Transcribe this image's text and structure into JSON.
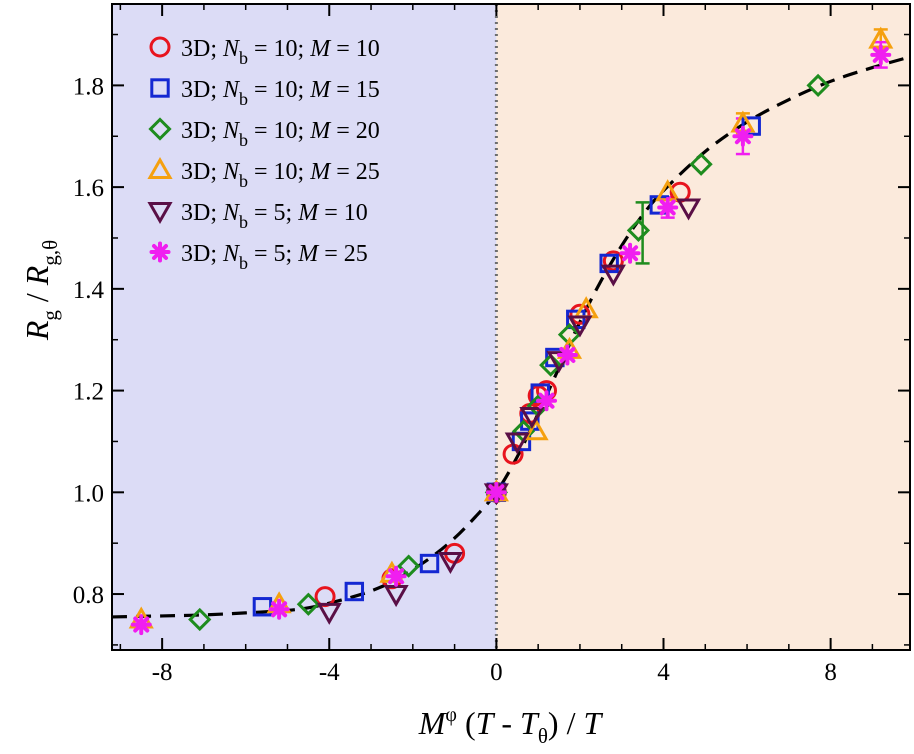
{
  "chart_data": {
    "type": "scatter",
    "xlabel": "M^φ (T - T_θ) / T",
    "xlabel_parts": {
      "m": "M",
      "phi": "φ",
      "open": " (",
      "t1": "T",
      "minus": " - ",
      "t2": "T",
      "theta": "θ",
      "close": ") / ",
      "t3": "T"
    },
    "ylabel": "R_g / R_g,θ",
    "ylabel_parts": {
      "r1": "R",
      "sub1": "g",
      "slash": " / ",
      "r2": "R",
      "sub2": "g,θ"
    },
    "xlim": [
      -9.2,
      9.9
    ],
    "ylim": [
      0.69,
      1.96
    ],
    "xticks": [
      -8,
      -4,
      0,
      4,
      8
    ],
    "xtick_labels": [
      "-8",
      "-4",
      "0",
      "4",
      "8"
    ],
    "yticks": [
      0.8,
      1.0,
      1.2,
      1.4,
      1.6,
      1.8
    ],
    "ytick_labels": [
      "0.8",
      "1.0",
      "1.2",
      "1.4",
      "1.6",
      "1.8"
    ],
    "regions": [
      {
        "x": [
          -9.2,
          0
        ],
        "color": "#dcdcf6"
      },
      {
        "x": [
          0,
          9.9
        ],
        "color": "#fbeadc"
      }
    ],
    "vline": {
      "x": 0,
      "style": "dotted",
      "color": "#6e6e6e"
    },
    "fit_curve": {
      "style": "dashed",
      "color": "#000000",
      "x": [
        -9.2,
        -8,
        -7,
        -6,
        -5,
        -4.5,
        -4,
        -3.5,
        -3,
        -2.5,
        -2,
        -1.5,
        -1,
        -0.5,
        0,
        0.5,
        1,
        1.5,
        2,
        2.5,
        3,
        3.5,
        4,
        5,
        6,
        7,
        8,
        9,
        9.9
      ],
      "y": [
        0.755,
        0.757,
        0.759,
        0.763,
        0.768,
        0.773,
        0.782,
        0.793,
        0.806,
        0.824,
        0.848,
        0.876,
        0.91,
        0.952,
        1.0,
        1.07,
        1.155,
        1.245,
        1.335,
        1.415,
        1.485,
        1.545,
        1.593,
        1.67,
        1.728,
        1.772,
        1.808,
        1.835,
        1.856
      ]
    },
    "legend_position": "top-left",
    "series": [
      {
        "label": {
          "pre": "3D; ",
          "n": "N",
          "sub": "b",
          "mid": " = 10; ",
          "m": "M",
          "post": " = 10"
        },
        "marker": "circle",
        "color": "#e8141e",
        "filled": false,
        "x": [
          -4.1,
          -2.5,
          -1.0,
          0.0,
          0.4,
          0.8,
          1.0,
          1.2,
          2.0,
          2.8,
          4.4
        ],
        "y": [
          0.795,
          0.83,
          0.88,
          1.0,
          1.075,
          1.155,
          1.19,
          1.2,
          1.35,
          1.455,
          1.59
        ]
      },
      {
        "label": {
          "pre": "3D; ",
          "n": "N",
          "sub": "b",
          "mid": " = 10; ",
          "m": "M",
          "post": " = 15"
        },
        "marker": "square",
        "color": "#1428d2",
        "filled": false,
        "x": [
          -5.6,
          -3.4,
          -1.6,
          0.0,
          0.6,
          0.8,
          1.05,
          1.4,
          1.9,
          2.7,
          3.9,
          6.1
        ],
        "y": [
          0.775,
          0.805,
          0.86,
          1.0,
          1.1,
          1.14,
          1.195,
          1.265,
          1.34,
          1.45,
          1.565,
          1.72
        ]
      },
      {
        "label": {
          "pre": "3D; ",
          "n": "N",
          "sub": "b",
          "mid": " = 10; ",
          "m": "M",
          "post": " = 20"
        },
        "marker": "diamond",
        "color": "#1e8c1e",
        "filled": false,
        "x": [
          -7.1,
          -4.5,
          -2.1,
          0.0,
          0.65,
          1.0,
          1.3,
          1.75,
          3.4,
          4.9,
          7.7
        ],
        "y": [
          0.75,
          0.78,
          0.855,
          1.0,
          1.12,
          1.17,
          1.25,
          1.31,
          1.515,
          1.645,
          1.8
        ]
      },
      {
        "label": {
          "pre": "3D; ",
          "n": "N",
          "sub": "b",
          "mid": " = 10; ",
          "m": "M",
          "post": " = 25"
        },
        "marker": "triangle-up",
        "color": "#f5a00f",
        "filled": false,
        "x": [
          -8.5,
          -5.2,
          -2.5,
          0.0,
          0.95,
          1.75,
          2.15,
          4.1,
          5.9,
          9.2
        ],
        "y": [
          0.75,
          0.78,
          0.84,
          1.0,
          1.12,
          1.28,
          1.36,
          1.59,
          1.725,
          1.89
        ],
        "yerr": [
          0,
          0,
          0,
          0,
          0,
          0,
          0,
          0,
          0.02,
          0.02
        ]
      },
      {
        "label": {
          "pre": "3D; ",
          "n": "N",
          "sub": "b",
          "mid": " = 5; ",
          "m": "M",
          "post": " = 10"
        },
        "marker": "triangle-down",
        "color": "#5a0f46",
        "filled": false,
        "x": [
          -4.0,
          -2.4,
          -1.1,
          0.0,
          0.5,
          0.85,
          1.5,
          2.0,
          2.8,
          4.6
        ],
        "y": [
          0.765,
          0.8,
          0.865,
          1.0,
          1.1,
          1.15,
          1.26,
          1.33,
          1.43,
          1.56
        ]
      },
      {
        "label": {
          "pre": "3D; ",
          "n": "N",
          "sub": "b",
          "mid": " = 5; ",
          "m": "M",
          "post": " = 25"
        },
        "marker": "asterisk",
        "color": "#f01ef0",
        "filled": true,
        "x": [
          -8.5,
          -5.2,
          -2.4,
          0.0,
          1.2,
          1.7,
          3.2,
          4.1,
          5.9,
          9.2
        ],
        "y": [
          0.74,
          0.77,
          0.835,
          1.0,
          1.18,
          1.27,
          1.47,
          1.56,
          1.7,
          1.86
        ],
        "yerr": [
          0,
          0,
          0,
          0,
          0,
          0,
          0,
          0.02,
          0.035,
          0.025
        ]
      }
    ],
    "error_bars_extra": [
      {
        "x": 3.5,
        "y": 1.51,
        "yerr": 0.06,
        "color": "#1e8c1e"
      }
    ]
  }
}
